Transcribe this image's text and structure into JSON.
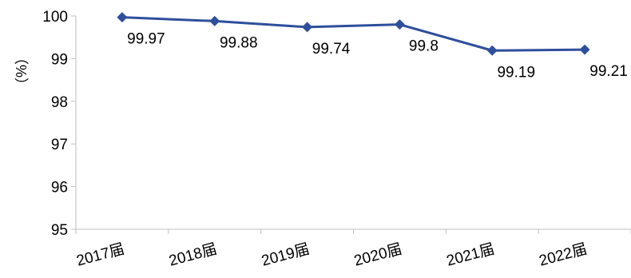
{
  "chart_data": {
    "type": "line",
    "categories": [
      "2017届",
      "2018届",
      "2019届",
      "2020届",
      "2021届",
      "2022届"
    ],
    "series": [
      {
        "values": [
          99.97,
          99.88,
          99.74,
          99.8,
          99.19,
          99.21
        ],
        "labels": [
          "99.97",
          "99.88",
          "99.74",
          "99.8",
          "99.19",
          "99.21"
        ],
        "color": "#2E4F9C"
      }
    ],
    "ylabel": "（%）",
    "ylim": [
      95,
      100
    ],
    "yticks": [
      "95",
      "96",
      "97",
      "98",
      "99",
      "100"
    ],
    "grid": false,
    "legend": "none",
    "axis_color": "#BFBFBF"
  }
}
